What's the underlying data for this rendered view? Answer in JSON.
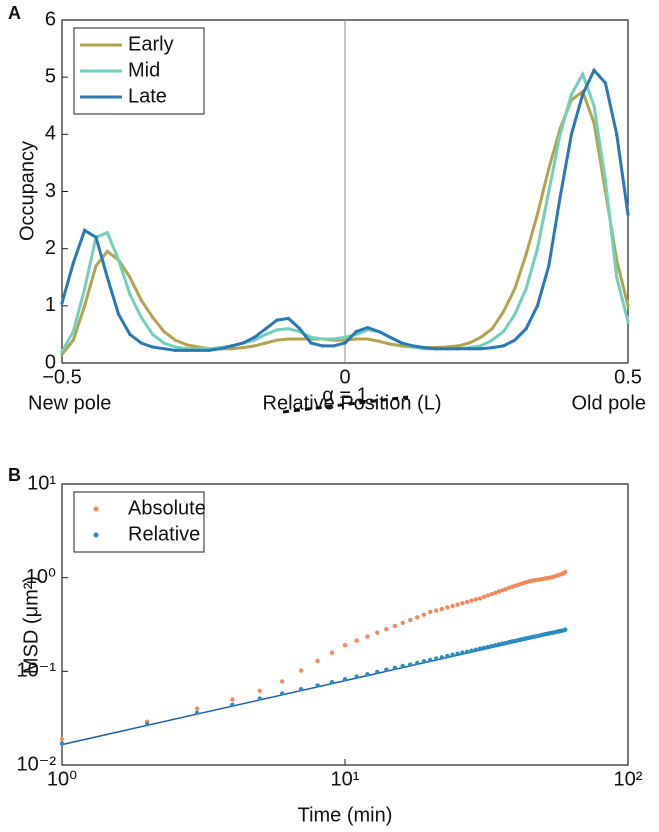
{
  "chart_data": [
    {
      "panel": "A",
      "type": "line",
      "ylabel": "Occupancy",
      "xlabel": "Relative Position (L)",
      "annotations": [
        "New pole",
        "Old pole"
      ],
      "x": [
        -0.5,
        -0.48,
        -0.46,
        -0.44,
        -0.42,
        -0.4,
        -0.38,
        -0.36,
        -0.34,
        -0.32,
        -0.3,
        -0.28,
        -0.26,
        -0.24,
        -0.22,
        -0.2,
        -0.18,
        -0.16,
        -0.14,
        -0.12,
        -0.1,
        -0.08,
        -0.06,
        -0.04,
        -0.02,
        0,
        0.02,
        0.04,
        0.06,
        0.08,
        0.1,
        0.12,
        0.14,
        0.16,
        0.18,
        0.2,
        0.22,
        0.24,
        0.26,
        0.28,
        0.3,
        0.32,
        0.34,
        0.36,
        0.38,
        0.4,
        0.42,
        0.44,
        0.46,
        0.48,
        0.5
      ],
      "series": [
        {
          "name": "Early",
          "color": "#b3a24e",
          "values": [
            0.15,
            0.4,
            1.0,
            1.7,
            1.95,
            1.8,
            1.5,
            1.1,
            0.8,
            0.55,
            0.4,
            0.32,
            0.28,
            0.25,
            0.25,
            0.25,
            0.27,
            0.3,
            0.35,
            0.4,
            0.42,
            0.42,
            0.42,
            0.42,
            0.4,
            0.4,
            0.42,
            0.42,
            0.38,
            0.33,
            0.3,
            0.28,
            0.27,
            0.27,
            0.28,
            0.3,
            0.35,
            0.45,
            0.6,
            0.9,
            1.3,
            1.9,
            2.6,
            3.4,
            4.1,
            4.6,
            4.75,
            4.2,
            3.0,
            1.8,
            1.0
          ]
        },
        {
          "name": "Mid",
          "color": "#72d0b8",
          "values": [
            0.2,
            0.55,
            1.3,
            2.2,
            2.28,
            1.8,
            1.2,
            0.8,
            0.5,
            0.35,
            0.28,
            0.25,
            0.25,
            0.25,
            0.27,
            0.3,
            0.35,
            0.4,
            0.5,
            0.58,
            0.6,
            0.55,
            0.45,
            0.42,
            0.42,
            0.45,
            0.5,
            0.58,
            0.55,
            0.45,
            0.35,
            0.28,
            0.25,
            0.25,
            0.25,
            0.25,
            0.27,
            0.3,
            0.4,
            0.55,
            0.85,
            1.3,
            2.0,
            3.0,
            4.0,
            4.7,
            5.05,
            4.5,
            3.2,
            1.5,
            0.72
          ]
        },
        {
          "name": "Late",
          "color": "#2a78b4",
          "values": [
            1.05,
            1.75,
            2.32,
            2.2,
            1.5,
            0.85,
            0.5,
            0.35,
            0.28,
            0.25,
            0.22,
            0.22,
            0.22,
            0.22,
            0.25,
            0.3,
            0.35,
            0.45,
            0.6,
            0.75,
            0.78,
            0.6,
            0.35,
            0.3,
            0.3,
            0.35,
            0.55,
            0.62,
            0.55,
            0.45,
            0.35,
            0.3,
            0.27,
            0.25,
            0.25,
            0.25,
            0.25,
            0.25,
            0.27,
            0.3,
            0.4,
            0.6,
            1.0,
            1.7,
            2.9,
            4.0,
            4.7,
            5.12,
            4.9,
            4.0,
            2.6
          ]
        }
      ],
      "xlim": [
        -0.5,
        0.5
      ],
      "xticks": [
        {
          "value": -0.5,
          "label": "−0.5"
        },
        0,
        0.5
      ],
      "ylim": [
        0,
        6
      ],
      "yticks": [
        0,
        1,
        2,
        3,
        4,
        5,
        6
      ],
      "legend": "upper left"
    },
    {
      "panel": "B",
      "type": "scatter",
      "ylabel": "MSD (μm²)",
      "xlabel": "Time (min)",
      "annotation": "α = 1",
      "log": true,
      "x": [
        1,
        2,
        3,
        4,
        5,
        6,
        7,
        8,
        9,
        10,
        11,
        12,
        13,
        14,
        15,
        16,
        17,
        18,
        19,
        20,
        21,
        22,
        23,
        24,
        25,
        26,
        27,
        28,
        29,
        30,
        31,
        32,
        33,
        34,
        35,
        36,
        37,
        38,
        39,
        40,
        41,
        42,
        43,
        44,
        45,
        46,
        47,
        48,
        49,
        50,
        51,
        52,
        53,
        54,
        55,
        56,
        57,
        58,
        59,
        60
      ],
      "series": [
        {
          "name": "Absolute",
          "color": "#f08a5d",
          "values": [
            0.019,
            0.029,
            0.04,
            0.05,
            0.062,
            0.078,
            0.102,
            0.129,
            0.158,
            0.19,
            0.213,
            0.235,
            0.259,
            0.282,
            0.305,
            0.329,
            0.353,
            0.377,
            0.402,
            0.43,
            0.445,
            0.462,
            0.481,
            0.499,
            0.516,
            0.534,
            0.551,
            0.569,
            0.585,
            0.6,
            0.624,
            0.646,
            0.668,
            0.689,
            0.711,
            0.733,
            0.755,
            0.778,
            0.8,
            0.82,
            0.84,
            0.86,
            0.88,
            0.9,
            0.92,
            0.93,
            0.94,
            0.95,
            0.96,
            0.97,
            0.98,
            0.99,
            1.0,
            1.01,
            1.03,
            1.05,
            1.07,
            1.09,
            1.11,
            1.15
          ]
        },
        {
          "name": "Relative",
          "color": "#2b8cc0",
          "values": [
            0.017,
            0.0273,
            0.0361,
            0.0439,
            0.0512,
            0.058,
            0.0645,
            0.0707,
            0.0766,
            0.0823,
            0.0878,
            0.0932,
            0.0985,
            0.104,
            0.109,
            0.114,
            0.118,
            0.123,
            0.128,
            0.132,
            0.137,
            0.141,
            0.146,
            0.15,
            0.154,
            0.158,
            0.162,
            0.166,
            0.17,
            0.175,
            0.178,
            0.182,
            0.186,
            0.19,
            0.194,
            0.198,
            0.201,
            0.205,
            0.209,
            0.212,
            0.216,
            0.219,
            0.223,
            0.226,
            0.229,
            0.233,
            0.236,
            0.239,
            0.242,
            0.246,
            0.249,
            0.252,
            0.255,
            0.258,
            0.261,
            0.264,
            0.267,
            0.27,
            0.273,
            0.278
          ]
        }
      ],
      "fit": {
        "x": [
          1,
          60
        ],
        "values": [
          0.0165,
          0.27
        ],
        "color": "#1f5fa8"
      },
      "xlim": [
        1,
        100
      ],
      "xticks": [
        {
          "value": 1,
          "label": "10⁰"
        },
        {
          "value": 10,
          "label": "10¹"
        },
        {
          "value": 100,
          "label": "10²"
        }
      ],
      "ylim": [
        0.01,
        10
      ],
      "yticks": [
        {
          "value": 0.01,
          "label": "10⁻²"
        },
        {
          "value": 0.1,
          "label": "10⁻¹"
        },
        {
          "value": 1,
          "label": "10⁰"
        },
        {
          "value": 10,
          "label": "10¹"
        }
      ],
      "legend": "upper left"
    }
  ]
}
